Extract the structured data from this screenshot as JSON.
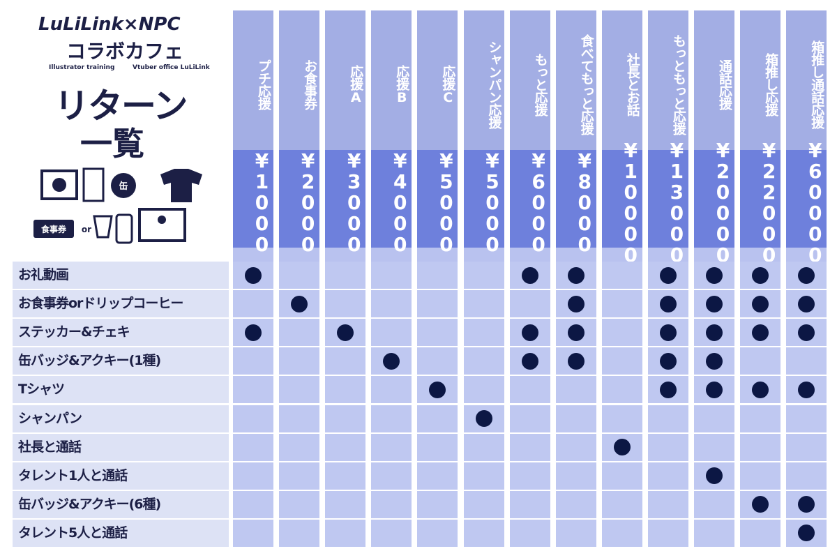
{
  "logo": {
    "brand": "LuLiLink×NPC",
    "cafe": "コラボカフェ",
    "sub_left": "Illustrator training",
    "sub_right": "Vtuber office LuLiLink"
  },
  "title": {
    "line1": "リターン",
    "line2": "一覧"
  },
  "icons": {
    "can": "缶",
    "ticket": "食事券",
    "or": "or"
  },
  "columns": [
    {
      "name": "プチ応援",
      "price": "¥1000"
    },
    {
      "name": "お食事券",
      "price": "¥2000"
    },
    {
      "name": "応援A",
      "price": "¥3000"
    },
    {
      "name": "応援B",
      "price": "¥4000"
    },
    {
      "name": "応援C",
      "price": "¥5000"
    },
    {
      "name": "シャンパン応援",
      "price": "¥5000"
    },
    {
      "name": "もっと応援",
      "price": "¥6000"
    },
    {
      "name": "食べてもっと応援",
      "price": "¥8000"
    },
    {
      "name": "社長とお話",
      "price": "¥10000"
    },
    {
      "name": "もっともっと応援",
      "price": "¥13000"
    },
    {
      "name": "通話応援",
      "price": "¥20000"
    },
    {
      "name": "箱推し応援",
      "price": "¥22000"
    },
    {
      "name": "箱推し通話応援",
      "price": "¥60000"
    }
  ],
  "rows": [
    {
      "label": "お礼動画",
      "included": [
        true,
        false,
        false,
        false,
        false,
        false,
        true,
        true,
        false,
        true,
        true,
        true,
        true
      ]
    },
    {
      "label": "お食事券orドリップコーヒー",
      "included": [
        false,
        true,
        false,
        false,
        false,
        false,
        false,
        true,
        false,
        true,
        true,
        true,
        true
      ]
    },
    {
      "label": "ステッカー&チェキ",
      "included": [
        true,
        false,
        true,
        false,
        false,
        false,
        true,
        true,
        false,
        true,
        true,
        true,
        true
      ]
    },
    {
      "label": "缶バッジ&アクキー(1種)",
      "included": [
        false,
        false,
        false,
        true,
        false,
        false,
        true,
        true,
        false,
        true,
        true,
        false,
        false
      ]
    },
    {
      "label": "Tシャツ",
      "included": [
        false,
        false,
        false,
        false,
        true,
        false,
        false,
        false,
        false,
        true,
        true,
        true,
        true
      ]
    },
    {
      "label": "シャンパン",
      "included": [
        false,
        false,
        false,
        false,
        false,
        true,
        false,
        false,
        false,
        false,
        false,
        false,
        false
      ]
    },
    {
      "label": "社長と通話",
      "included": [
        false,
        false,
        false,
        false,
        false,
        false,
        false,
        false,
        true,
        false,
        false,
        false,
        false
      ]
    },
    {
      "label": "タレント1人と通話",
      "included": [
        false,
        false,
        false,
        false,
        false,
        false,
        false,
        false,
        false,
        false,
        true,
        false,
        false
      ]
    },
    {
      "label": "缶バッジ&アクキー(6種)",
      "included": [
        false,
        false,
        false,
        false,
        false,
        false,
        false,
        false,
        false,
        false,
        false,
        true,
        true
      ]
    },
    {
      "label": "タレント5人と通話",
      "included": [
        false,
        false,
        false,
        false,
        false,
        false,
        false,
        false,
        false,
        false,
        false,
        false,
        true
      ]
    }
  ]
}
